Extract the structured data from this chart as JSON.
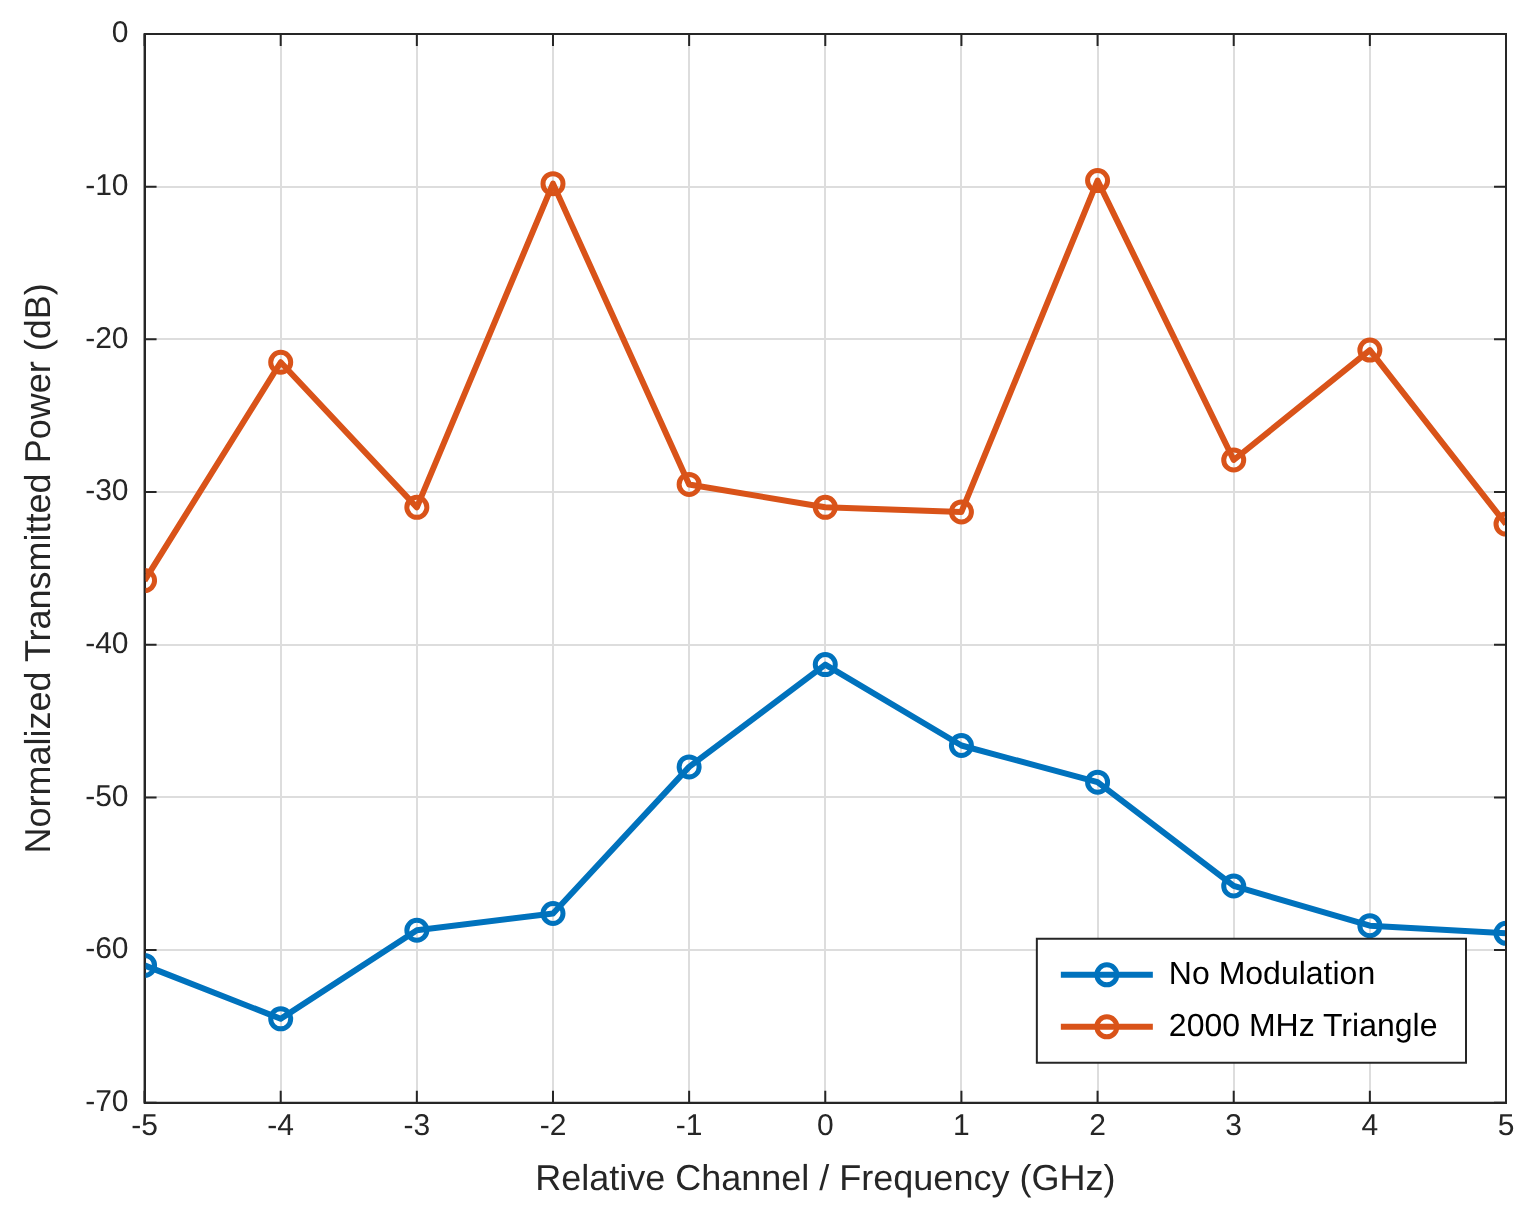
{
  "chart_data": {
    "type": "line",
    "xlabel": "Relative Channel / Frequency (GHz)",
    "ylabel": "Normalized Transmitted Power (dB)",
    "x": [
      -5,
      -4,
      -3,
      -2,
      -1,
      0,
      1,
      2,
      3,
      4,
      5
    ],
    "series": [
      {
        "name": "No Modulation",
        "color": "#0072bd",
        "values": [
          -61,
          -64.5,
          -58.7,
          -57.6,
          -48,
          -41.3,
          -46.6,
          -49,
          -55.8,
          -58.4,
          -58.9
        ]
      },
      {
        "name": "2000 MHz Triangle",
        "color": "#d95319",
        "values": [
          -35.8,
          -21.5,
          -31,
          -9.8,
          -29.5,
          -31,
          -31.3,
          -9.6,
          -27.9,
          -20.7,
          -32.1
        ]
      }
    ],
    "xlim": [
      -5,
      5
    ],
    "xticks": [
      -5,
      -4,
      -3,
      -2,
      -1,
      0,
      1,
      2,
      3,
      4,
      5
    ],
    "ylim": [
      -70,
      0
    ],
    "yticks": [
      -70,
      -60,
      -50,
      -40,
      -30,
      -20,
      -10,
      0
    ],
    "grid": true,
    "legend": "bottom right",
    "marker": "circle",
    "line_style": "solid"
  }
}
